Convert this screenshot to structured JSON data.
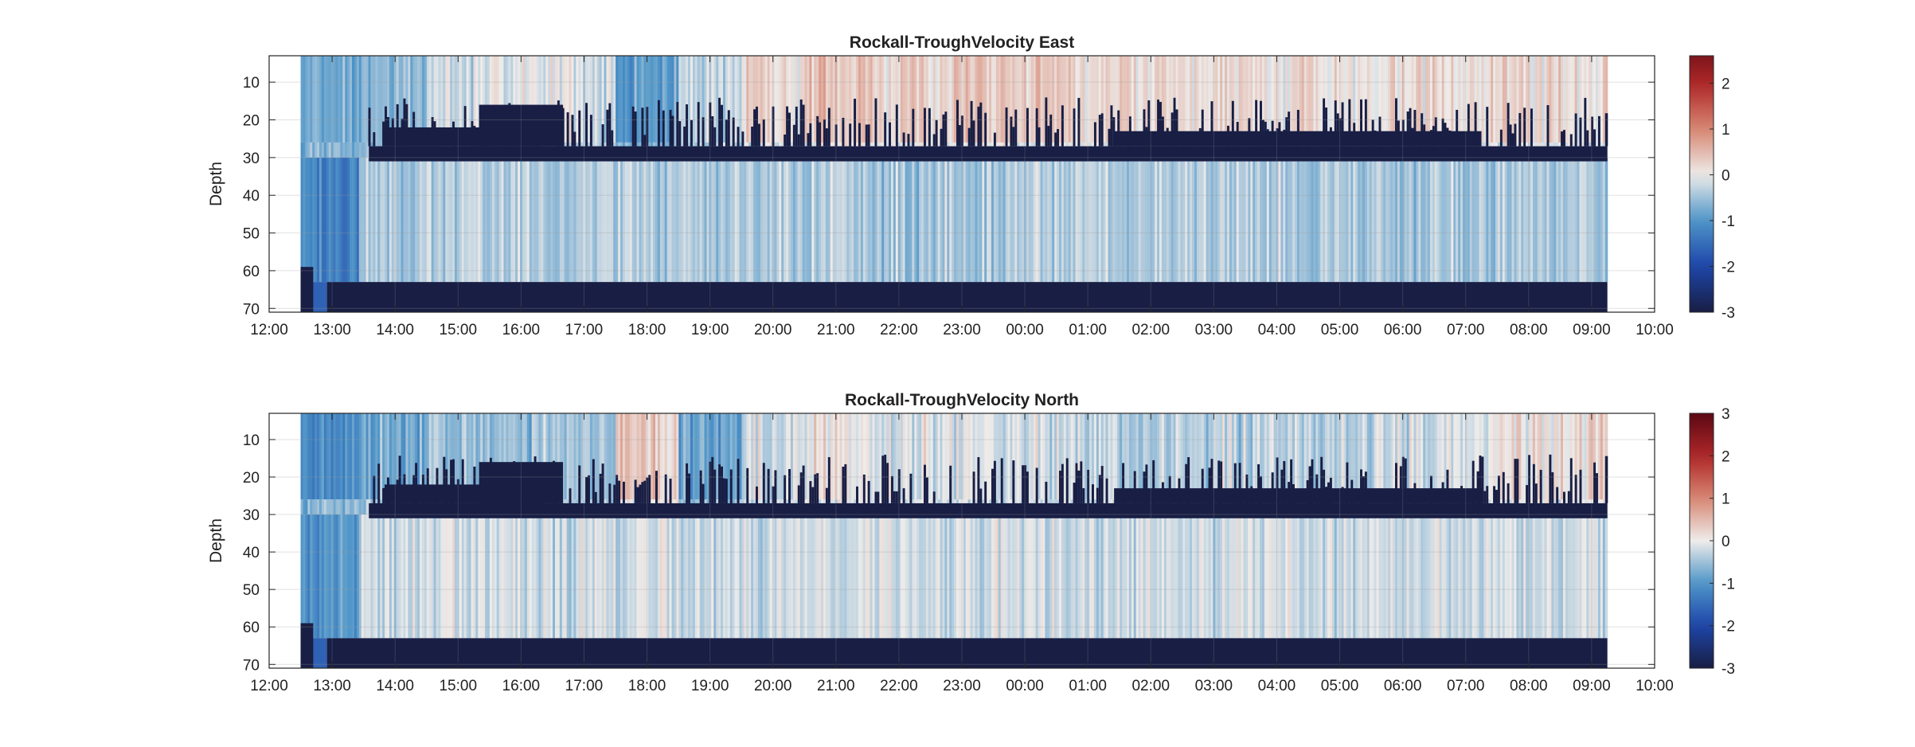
{
  "chart_data": [
    {
      "type": "heatmap",
      "title": "Rockall-TroughVelocity East",
      "ylabel": "Depth",
      "xlabel": "",
      "x_ticks": [
        "12:00",
        "13:00",
        "14:00",
        "15:00",
        "16:00",
        "17:00",
        "18:00",
        "19:00",
        "20:00",
        "21:00",
        "22:00",
        "23:00",
        "00:00",
        "01:00",
        "02:00",
        "03:00",
        "04:00",
        "05:00",
        "06:00",
        "07:00",
        "08:00",
        "09:00",
        "10:00"
      ],
      "x_range": [
        "12:00",
        "10:00 (next day)"
      ],
      "data_time_range": [
        "12:30",
        "09:15 (next day)"
      ],
      "y_ticks": [
        10,
        20,
        30,
        40,
        50,
        60,
        70
      ],
      "ylim": [
        3,
        71
      ],
      "y_reversed": true,
      "grid": true,
      "colorbar": {
        "min": -3,
        "max": 2.6,
        "ticks": [
          -3,
          -2,
          -1,
          0,
          1,
          2
        ]
      },
      "colormap": "diverging balance (dark navy - blue - white - red - dark red)",
      "structure": {
        "surface_band_depth": [
          3,
          26
        ],
        "surface_band_mean_by_hour": [
          -0.8,
          -0.6,
          -0.2,
          -0.1,
          -0.15,
          -0.9,
          -0.3,
          0.2,
          0.35,
          0.35,
          0.3,
          0.3,
          0.25,
          0.2,
          0.15,
          0.15,
          0.15,
          0.15,
          0.2,
          0.2,
          0.15
        ],
        "deep_layer_depth": [
          30,
          63
        ],
        "deep_layer_mean": -0.4,
        "masked_band_depth_after_13:35": [
          27,
          31
        ],
        "masked_bottom_depth_after_12:55": [
          63,
          71
        ]
      }
    },
    {
      "type": "heatmap",
      "title": "Rockall-TroughVelocity North",
      "ylabel": "Depth",
      "xlabel": "",
      "x_ticks": [
        "12:00",
        "13:00",
        "14:00",
        "15:00",
        "16:00",
        "17:00",
        "18:00",
        "19:00",
        "20:00",
        "21:00",
        "22:00",
        "23:00",
        "00:00",
        "01:00",
        "02:00",
        "03:00",
        "04:00",
        "05:00",
        "06:00",
        "07:00",
        "08:00",
        "09:00",
        "10:00"
      ],
      "x_range": [
        "12:00",
        "10:00 (next day)"
      ],
      "data_time_range": [
        "12:30",
        "09:15 (next day)"
      ],
      "y_ticks": [
        10,
        20,
        30,
        40,
        50,
        60,
        70
      ],
      "ylim": [
        3,
        71
      ],
      "y_reversed": true,
      "grid": true,
      "colorbar": {
        "min": -3,
        "max": 3,
        "ticks": [
          -3,
          -2,
          -1,
          0,
          1,
          2,
          3
        ]
      },
      "colormap": "diverging balance (dark navy - blue - white - red - dark red)",
      "structure": {
        "surface_band_depth": [
          3,
          26
        ],
        "surface_band_mean_by_hour": [
          -1.1,
          -0.7,
          -0.5,
          -0.5,
          -0.5,
          0.3,
          -0.9,
          -0.2,
          0.0,
          -0.05,
          -0.1,
          -0.2,
          -0.25,
          -0.3,
          -0.35,
          -0.35,
          -0.3,
          -0.2,
          -0.1,
          0.1,
          0.25
        ],
        "deep_layer_depth": [
          30,
          63
        ],
        "deep_layer_mean": -0.2,
        "masked_band_depth_after_13:35": [
          27,
          31
        ],
        "masked_bottom_depth_after_12:55": [
          63,
          71
        ]
      }
    }
  ]
}
